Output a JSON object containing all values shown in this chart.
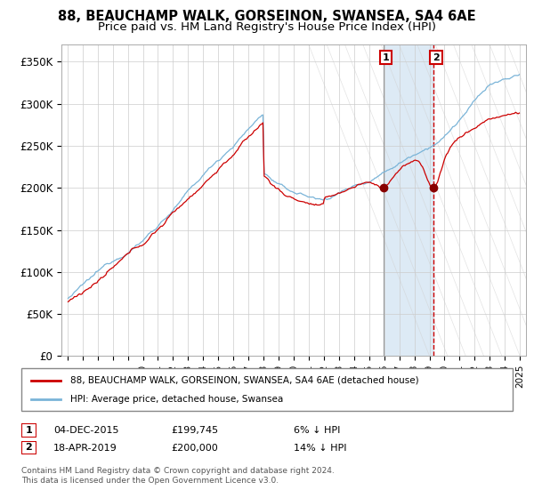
{
  "title1": "88, BEAUCHAMP WALK, GORSEINON, SWANSEA, SA4 6AE",
  "title2": "Price paid vs. HM Land Registry's House Price Index (HPI)",
  "ylim": [
    0,
    370000
  ],
  "yticks": [
    0,
    50000,
    100000,
    150000,
    200000,
    250000,
    300000,
    350000
  ],
  "ytick_labels": [
    "£0",
    "£50K",
    "£100K",
    "£150K",
    "£200K",
    "£250K",
    "£300K",
    "£350K"
  ],
  "sale1_date": "04-DEC-2015",
  "sale1_price": 199745,
  "sale1_hpi_diff": "6% ↓ HPI",
  "sale2_date": "18-APR-2019",
  "sale2_price": 200000,
  "sale2_hpi_diff": "14% ↓ HPI",
  "legend_line1": "88, BEAUCHAMP WALK, GORSEINON, SWANSEA, SA4 6AE (detached house)",
  "legend_line2": "HPI: Average price, detached house, Swansea",
  "footer": "Contains HM Land Registry data © Crown copyright and database right 2024.\nThis data is licensed under the Open Government Licence v3.0.",
  "hpi_color": "#7ab4d8",
  "price_color": "#cc0000",
  "bg_color": "#ffffff",
  "grid_color": "#cccccc",
  "shade_color": "#ddeaf5",
  "point_color": "#880000",
  "title_fontsize": 10.5,
  "subtitle_fontsize": 9.5,
  "tick_fontsize": 8.5
}
